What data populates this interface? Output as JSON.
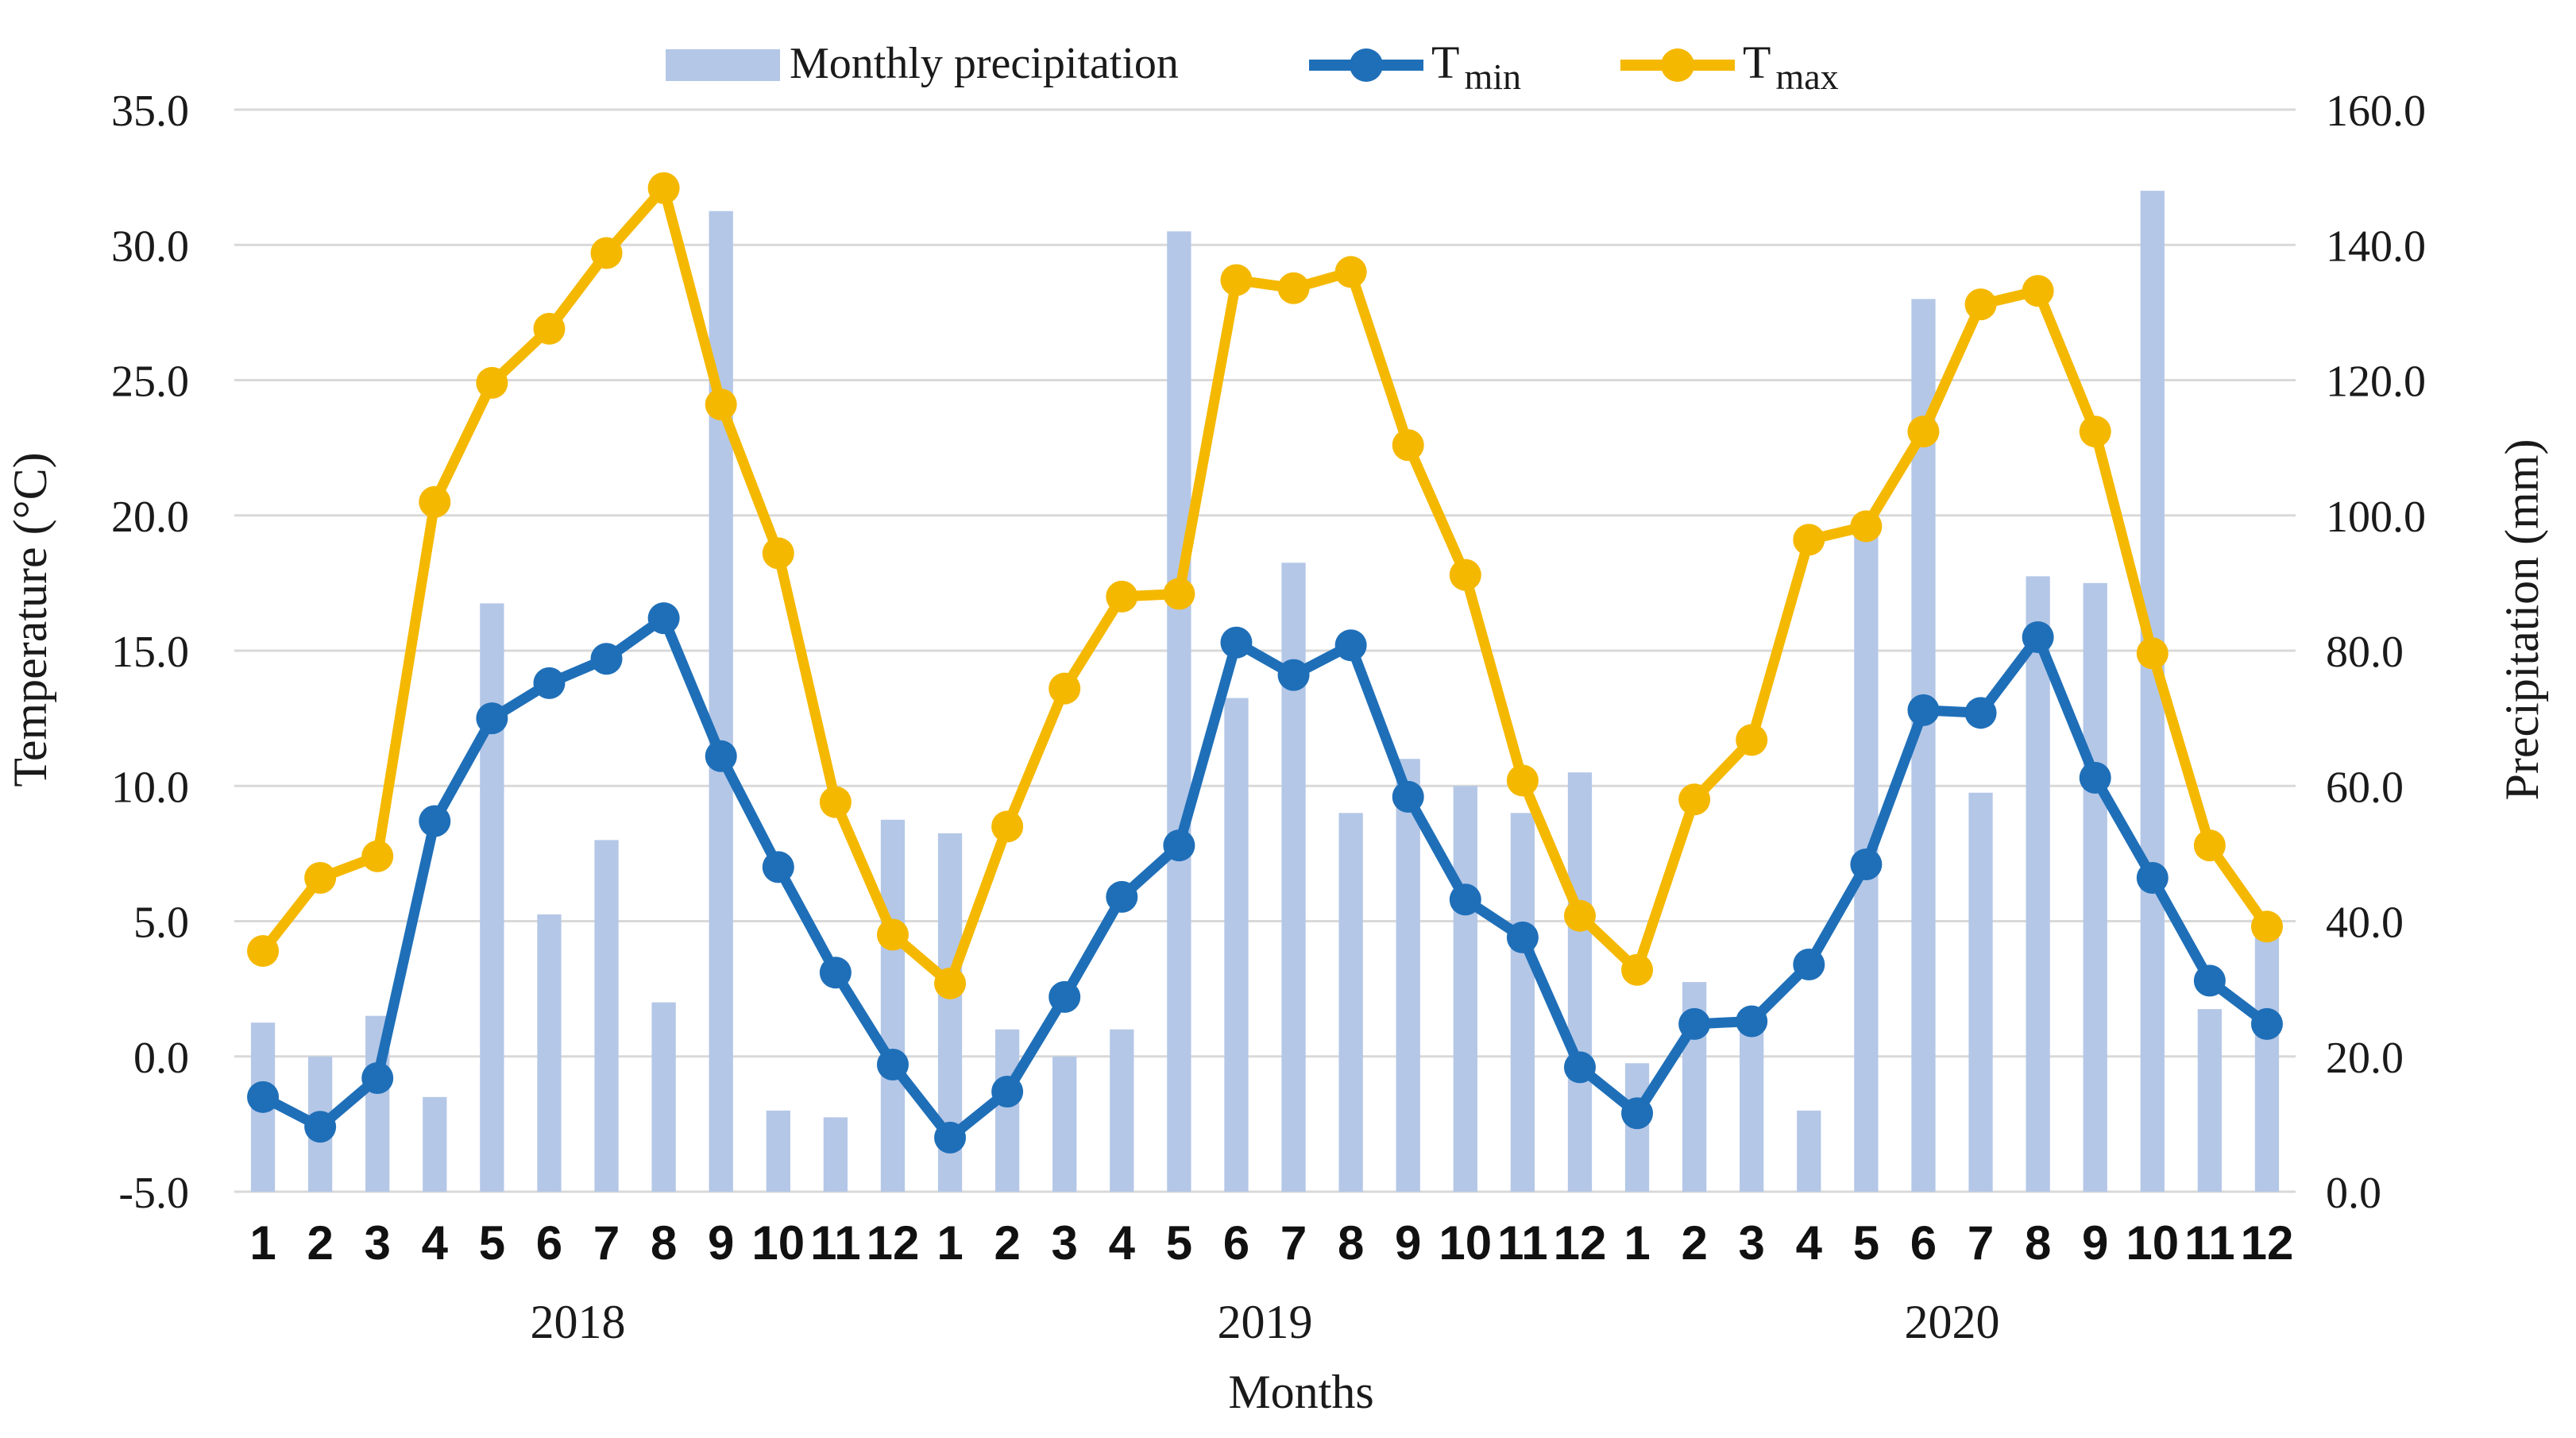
{
  "chart_data": {
    "type": "bar+line",
    "title": "",
    "xlabel": "Months",
    "ylabel_left": "Temperature (°C)",
    "ylabel_right": "Precipitation (mm)",
    "ylim_left": [
      -5,
      35
    ],
    "ylim_right": [
      0,
      160
    ],
    "yticks_left": [
      "-5.0",
      "0.0",
      "5.0",
      "10.0",
      "15.0",
      "20.0",
      "25.0",
      "30.0",
      "35.0"
    ],
    "yticks_right": [
      "0.0",
      "20.0",
      "40.0",
      "60.0",
      "80.0",
      "100.0",
      "120.0",
      "140.0",
      "160.0"
    ],
    "grid": true,
    "legend_position": "top-center",
    "categories": [
      "1",
      "2",
      "3",
      "4",
      "5",
      "6",
      "7",
      "8",
      "9",
      "10",
      "11",
      "12",
      "1",
      "2",
      "3",
      "4",
      "5",
      "6",
      "7",
      "8",
      "9",
      "10",
      "11",
      "12",
      "1",
      "2",
      "3",
      "4",
      "5",
      "6",
      "7",
      "8",
      "9",
      "10",
      "11",
      "12"
    ],
    "years": [
      "2018",
      "2019",
      "2020"
    ],
    "series": [
      {
        "name": "Monthly precipitation",
        "type": "bar",
        "axis": "right",
        "color": "#b4c7e7",
        "values": [
          25,
          20,
          26,
          14,
          87,
          41,
          52,
          28,
          145,
          12,
          11,
          55,
          53,
          24,
          20,
          24,
          142,
          73,
          93,
          56,
          64,
          60,
          56,
          62,
          19,
          31,
          26,
          12,
          100,
          132,
          59,
          91,
          90,
          148,
          27,
          40
        ]
      },
      {
        "name": "T",
        "subscript": "min",
        "type": "line",
        "axis": "left",
        "color": "#1f6fb8",
        "values": [
          -1.5,
          -2.6,
          -0.8,
          8.7,
          12.5,
          13.8,
          14.7,
          16.2,
          11.1,
          7.0,
          3.1,
          -0.3,
          -3.0,
          -1.3,
          2.2,
          5.9,
          7.8,
          15.3,
          14.1,
          15.2,
          9.6,
          5.8,
          4.4,
          -0.4,
          -2.1,
          1.2,
          1.3,
          3.4,
          7.1,
          12.8,
          12.7,
          15.5,
          10.3,
          6.6,
          2.8,
          1.2
        ]
      },
      {
        "name": "T",
        "subscript": "max",
        "type": "line",
        "axis": "left",
        "color": "#f5b800",
        "values": [
          3.9,
          6.6,
          7.4,
          20.5,
          24.9,
          26.9,
          29.7,
          32.1,
          24.1,
          18.6,
          9.4,
          4.5,
          2.7,
          8.5,
          13.6,
          17.0,
          17.1,
          28.7,
          28.4,
          29.0,
          22.6,
          17.8,
          10.2,
          5.2,
          3.2,
          9.5,
          11.7,
          19.1,
          19.6,
          23.1,
          27.8,
          28.3,
          23.1,
          14.9,
          7.8,
          4.8
        ]
      }
    ]
  }
}
